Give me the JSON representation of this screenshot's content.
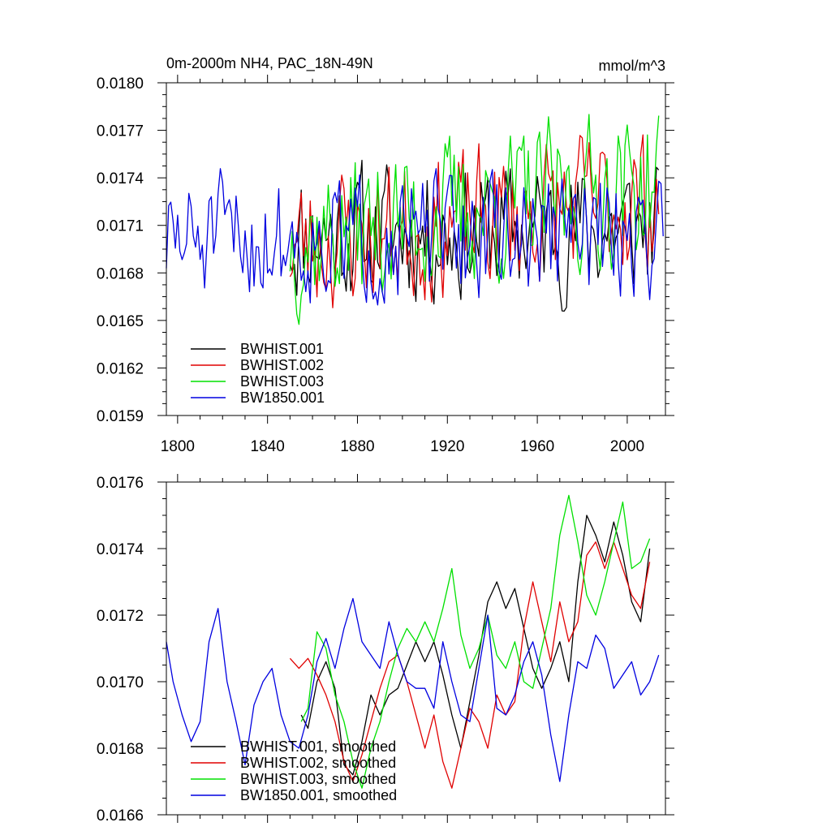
{
  "chart_data": [
    {
      "type": "line",
      "title": "0m-2000m NH4, PAC_18N-49N",
      "units": "mmol/m^3",
      "xlim": [
        1795,
        2017
      ],
      "ylim": [
        0.0159,
        0.018
      ],
      "xticks": [
        1800,
        1840,
        1880,
        1920,
        1960,
        2000
      ],
      "xtick_labels": [
        "1800",
        "1840",
        "1880",
        "1920",
        "1960",
        "2000"
      ],
      "yticks": [
        0.0159,
        0.0162,
        0.0165,
        0.0168,
        0.0171,
        0.0174,
        0.0177,
        0.018
      ],
      "ytick_labels": [
        "0.0159",
        "0.0162",
        "0.0165",
        "0.0168",
        "0.0171",
        "0.0174",
        "0.0177",
        "0.0180"
      ],
      "legend_position": "bottom-left",
      "series": [
        {
          "name": "BWHIST.001",
          "color": "#000000",
          "x_start": 1850,
          "x_end": 2014,
          "mean": 0.01705,
          "trend": 3e-05,
          "amp": 0.00038,
          "seed": 11
        },
        {
          "name": "BWHIST.002",
          "color": "#e00000",
          "x_start": 1850,
          "x_end": 2014,
          "mean": 0.01698,
          "trend": 0.0003,
          "amp": 0.0004,
          "seed": 23
        },
        {
          "name": "BWHIST.003",
          "color": "#00e000",
          "x_start": 1850,
          "x_end": 2014,
          "mean": 0.01702,
          "trend": 0.00035,
          "amp": 0.00042,
          "seed": 37
        },
        {
          "name": "BW1850.001",
          "color": "#0000e0",
          "x_start": 1795,
          "x_end": 2016,
          "mean": 0.017,
          "trend": 5e-05,
          "amp": 0.00035,
          "seed": 51
        }
      ]
    },
    {
      "type": "line",
      "title": "",
      "xlim": [
        1795,
        2017
      ],
      "ylim": [
        0.0166,
        0.0176
      ],
      "xticks": [
        1800,
        1840,
        1880,
        1920,
        1960,
        2000
      ],
      "xtick_labels": [],
      "yticks": [
        0.0166,
        0.0168,
        0.017,
        0.0172,
        0.0174,
        0.0176
      ],
      "ytick_labels": [
        "0.0166",
        "0.0168",
        "0.0170",
        "0.0172",
        "0.0174",
        "0.0176"
      ],
      "legend_position": "bottom-left",
      "series": [
        {
          "name": "BWHIST.001, smoothed",
          "color": "#000000",
          "x": [
            1855,
            1858,
            1862,
            1866,
            1870,
            1874,
            1878,
            1882,
            1886,
            1890,
            1894,
            1898,
            1902,
            1906,
            1910,
            1914,
            1918,
            1922,
            1926,
            1930,
            1934,
            1938,
            1942,
            1946,
            1950,
            1954,
            1958,
            1962,
            1966,
            1970,
            1974,
            1978,
            1982,
            1986,
            1990,
            1994,
            1998,
            2002,
            2006,
            2010
          ],
          "y": [
            0.0169,
            0.01686,
            0.017,
            0.01706,
            0.01698,
            0.01675,
            0.01672,
            0.01682,
            0.01696,
            0.0169,
            0.01696,
            0.01698,
            0.01705,
            0.01712,
            0.01706,
            0.01712,
            0.01702,
            0.0169,
            0.0168,
            0.01694,
            0.01708,
            0.01724,
            0.0173,
            0.01722,
            0.01728,
            0.01716,
            0.01704,
            0.01698,
            0.01704,
            0.01712,
            0.017,
            0.0173,
            0.0175,
            0.01744,
            0.01736,
            0.01748,
            0.01738,
            0.01724,
            0.01718,
            0.0174
          ]
        },
        {
          "name": "BWHIST.002, smoothed",
          "color": "#e00000",
          "x": [
            1850,
            1854,
            1858,
            1862,
            1866,
            1870,
            1874,
            1878,
            1882,
            1886,
            1890,
            1894,
            1898,
            1902,
            1906,
            1910,
            1914,
            1918,
            1922,
            1926,
            1930,
            1934,
            1938,
            1942,
            1946,
            1950,
            1954,
            1958,
            1962,
            1966,
            1970,
            1974,
            1978,
            1982,
            1986,
            1990,
            1994,
            1998,
            2002,
            2006,
            2010
          ],
          "y": [
            0.01707,
            0.01704,
            0.01707,
            0.01702,
            0.01696,
            0.01688,
            0.01676,
            0.0167,
            0.01678,
            0.01688,
            0.01698,
            0.01706,
            0.01708,
            0.017,
            0.0169,
            0.0168,
            0.0169,
            0.01676,
            0.01668,
            0.0168,
            0.01692,
            0.01688,
            0.0168,
            0.01696,
            0.0169,
            0.01694,
            0.01716,
            0.0173,
            0.01718,
            0.01706,
            0.01724,
            0.01712,
            0.01718,
            0.01738,
            0.01742,
            0.01734,
            0.01742,
            0.01734,
            0.01726,
            0.01722,
            0.01736
          ]
        },
        {
          "name": "BWHIST.003, smoothed",
          "color": "#00e000",
          "x": [
            1855,
            1858,
            1862,
            1866,
            1870,
            1874,
            1878,
            1882,
            1886,
            1890,
            1894,
            1898,
            1902,
            1906,
            1910,
            1914,
            1918,
            1922,
            1926,
            1930,
            1934,
            1938,
            1942,
            1946,
            1950,
            1954,
            1958,
            1962,
            1966,
            1970,
            1974,
            1978,
            1982,
            1986,
            1990,
            1994,
            1998,
            2002,
            2006,
            2010
          ],
          "y": [
            0.01688,
            0.01692,
            0.01715,
            0.0171,
            0.01696,
            0.01688,
            0.01676,
            0.01668,
            0.0168,
            0.01688,
            0.017,
            0.0171,
            0.01716,
            0.01712,
            0.01718,
            0.01712,
            0.01722,
            0.01734,
            0.01714,
            0.01704,
            0.0171,
            0.0172,
            0.01708,
            0.01704,
            0.01712,
            0.017,
            0.01698,
            0.0171,
            0.01722,
            0.01744,
            0.01756,
            0.01742,
            0.01726,
            0.0172,
            0.0173,
            0.01742,
            0.01754,
            0.01734,
            0.01736,
            0.01743
          ]
        },
        {
          "name": "BW1850.001, smoothed",
          "color": "#0000e0",
          "x": [
            1795,
            1798,
            1802,
            1806,
            1810,
            1814,
            1818,
            1822,
            1826,
            1830,
            1834,
            1838,
            1842,
            1846,
            1850,
            1854,
            1858,
            1862,
            1866,
            1870,
            1874,
            1878,
            1882,
            1886,
            1890,
            1894,
            1898,
            1902,
            1906,
            1910,
            1914,
            1918,
            1922,
            1926,
            1930,
            1934,
            1938,
            1942,
            1946,
            1950,
            1954,
            1958,
            1962,
            1966,
            1970,
            1974,
            1978,
            1982,
            1986,
            1990,
            1994,
            1998,
            2002,
            2006,
            2010,
            2014
          ],
          "y": [
            0.01712,
            0.017,
            0.0169,
            0.01682,
            0.01688,
            0.01712,
            0.01722,
            0.017,
            0.01688,
            0.01675,
            0.01693,
            0.017,
            0.01704,
            0.0169,
            0.01682,
            0.0168,
            0.0169,
            0.01706,
            0.01713,
            0.01704,
            0.01716,
            0.01725,
            0.01712,
            0.01708,
            0.01704,
            0.01718,
            0.01708,
            0.017,
            0.01698,
            0.01698,
            0.01692,
            0.01712,
            0.017,
            0.0169,
            0.01688,
            0.01704,
            0.0172,
            0.01692,
            0.0169,
            0.01696,
            0.01706,
            0.01712,
            0.01702,
            0.01684,
            0.0167,
            0.0169,
            0.01706,
            0.01704,
            0.01714,
            0.0171,
            0.01698,
            0.01702,
            0.01706,
            0.01696,
            0.017,
            0.01708
          ]
        }
      ]
    }
  ]
}
